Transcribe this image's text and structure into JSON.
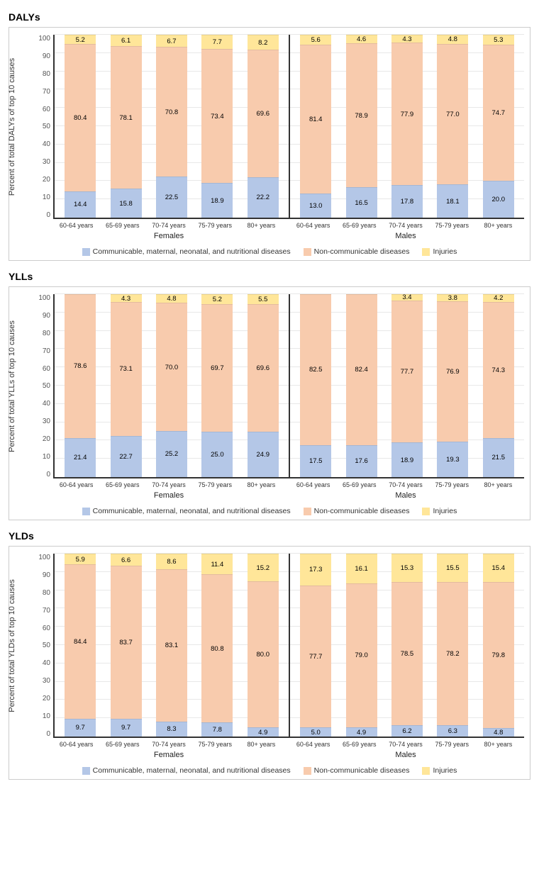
{
  "colors": {
    "communicable": "#b4c7e7",
    "noncommunicable": "#f8cbad",
    "injuries": "#ffe699",
    "axis": "#333333",
    "grid": "#e8e8e8",
    "background": "#ffffff"
  },
  "legend": {
    "communicable": "Communicable, maternal, neonatal, and nutritional diseases",
    "noncommunicable": "Non-communicable diseases",
    "injuries": "Injuries"
  },
  "y_axis": {
    "min": 0,
    "max": 100,
    "step": 10,
    "ticks": [
      "0",
      "10",
      "20",
      "30",
      "40",
      "50",
      "60",
      "70",
      "80",
      "90",
      "100"
    ]
  },
  "age_labels": [
    "60-64 years",
    "65-69 years",
    "70-74 years",
    "75-79 years",
    "80+ years"
  ],
  "group_labels": [
    "Females",
    "Males"
  ],
  "panels": [
    {
      "title": "DALYs",
      "ylabel": "Percent of total DALYs of top 10 causes",
      "groups": [
        {
          "bars": [
            {
              "comm": 14.4,
              "non": 80.4,
              "inj": 5.2
            },
            {
              "comm": 15.8,
              "non": 78.1,
              "inj": 6.1
            },
            {
              "comm": 22.5,
              "non": 70.8,
              "inj": 6.7
            },
            {
              "comm": 18.9,
              "non": 73.4,
              "inj": 7.7
            },
            {
              "comm": 22.2,
              "non": 69.6,
              "inj": 8.2
            }
          ]
        },
        {
          "bars": [
            {
              "comm": 13.0,
              "non": 81.4,
              "inj": 5.6
            },
            {
              "comm": 16.5,
              "non": 78.9,
              "inj": 4.6
            },
            {
              "comm": 17.8,
              "non": 77.9,
              "inj": 4.3
            },
            {
              "comm": 18.1,
              "non": 77.0,
              "inj": 4.8
            },
            {
              "comm": 20.0,
              "non": 74.7,
              "inj": 5.3
            }
          ]
        }
      ]
    },
    {
      "title": "YLLs",
      "ylabel": "Percent of total YLLs of top 10 causes",
      "groups": [
        {
          "bars": [
            {
              "comm": 21.4,
              "non": 78.6,
              "inj": null
            },
            {
              "comm": 22.7,
              "non": 73.1,
              "inj": 4.3
            },
            {
              "comm": 25.2,
              "non": 70.0,
              "inj": 4.8
            },
            {
              "comm": 25.0,
              "non": 69.7,
              "inj": 5.2
            },
            {
              "comm": 24.9,
              "non": 69.6,
              "inj": 5.5
            }
          ]
        },
        {
          "bars": [
            {
              "comm": 17.5,
              "non": 82.5,
              "inj": null
            },
            {
              "comm": 17.6,
              "non": 82.4,
              "inj": null
            },
            {
              "comm": 18.9,
              "non": 77.7,
              "inj": 3.4
            },
            {
              "comm": 19.3,
              "non": 76.9,
              "inj": 3.8
            },
            {
              "comm": 21.5,
              "non": 74.3,
              "inj": 4.2
            }
          ]
        }
      ]
    },
    {
      "title": "YLDs",
      "ylabel": "Percent of total YLDs of top 10 causes",
      "groups": [
        {
          "bars": [
            {
              "comm": 9.7,
              "non": 84.4,
              "inj": 5.9
            },
            {
              "comm": 9.7,
              "non": 83.7,
              "inj": 6.6
            },
            {
              "comm": 8.3,
              "non": 83.1,
              "inj": 8.6
            },
            {
              "comm": 7.8,
              "non": 80.8,
              "inj": 11.4
            },
            {
              "comm": 4.9,
              "non": 80.0,
              "inj": 15.2
            }
          ]
        },
        {
          "bars": [
            {
              "comm": 5.0,
              "non": 77.7,
              "inj": 17.3
            },
            {
              "comm": 4.9,
              "non": 79.0,
              "inj": 16.1
            },
            {
              "comm": 6.2,
              "non": 78.5,
              "inj": 15.3
            },
            {
              "comm": 6.3,
              "non": 78.2,
              "inj": 15.5
            },
            {
              "comm": 4.8,
              "non": 79.8,
              "inj": 15.4
            }
          ]
        }
      ]
    }
  ]
}
